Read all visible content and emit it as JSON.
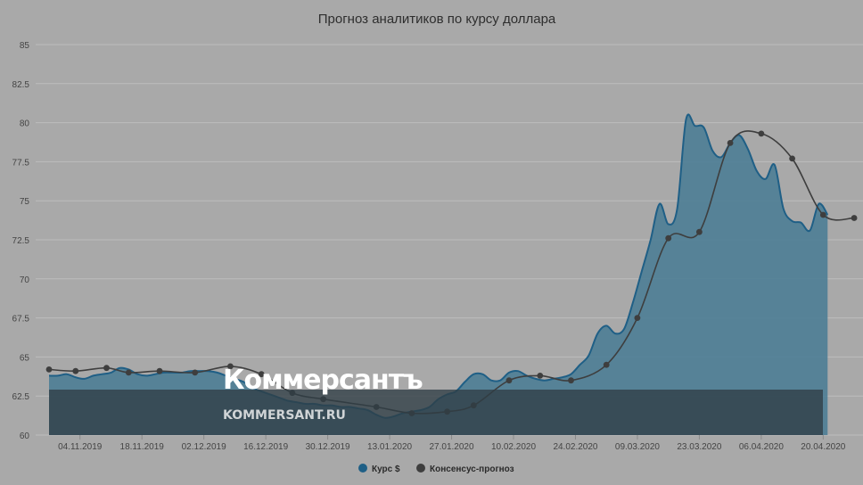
{
  "chart_data": {
    "type": "area",
    "title": "Прогноз аналитиков по курсу доллара",
    "ylim": [
      60,
      85
    ],
    "yticks": [
      "85",
      "82.5",
      "80",
      "77.5",
      "75",
      "72.5",
      "70",
      "67.5",
      "65",
      "62.5",
      "60"
    ],
    "xticks": [
      "04.11.2019",
      "18.11.2019",
      "02.12.2019",
      "16.12.2019",
      "30.12.2019",
      "13.01.2020",
      "27.01.2020",
      "10.02.2020",
      "24.02.2020",
      "09.03.2020",
      "23.03.2020",
      "06.04.2020",
      "20.04.2020"
    ],
    "grid": true,
    "legend_position": "bottom-center",
    "series": [
      {
        "name": "Курс $",
        "color": "#1f5f86",
        "fill": "#4f7f96",
        "points": [
          [
            "28.10.2019",
            63.8
          ],
          [
            "30.10.2019",
            63.8
          ],
          [
            "01.11.2019",
            63.9
          ],
          [
            "03.11.2019",
            63.7
          ],
          [
            "05.11.2019",
            63.6
          ],
          [
            "07.11.2019",
            63.8
          ],
          [
            "09.11.2019",
            63.9
          ],
          [
            "11.11.2019",
            64.0
          ],
          [
            "13.11.2019",
            64.3
          ],
          [
            "15.11.2019",
            64.2
          ],
          [
            "17.11.2019",
            63.9
          ],
          [
            "19.11.2019",
            63.8
          ],
          [
            "21.11.2019",
            63.9
          ],
          [
            "23.11.2019",
            64.0
          ],
          [
            "25.11.2019",
            64.0
          ],
          [
            "27.11.2019",
            64.0
          ],
          [
            "29.11.2019",
            64.1
          ],
          [
            "01.12.2019",
            64.1
          ],
          [
            "03.12.2019",
            64.1
          ],
          [
            "05.12.2019",
            64.0
          ],
          [
            "07.12.2019",
            63.8
          ],
          [
            "09.12.2019",
            63.6
          ],
          [
            "11.12.2019",
            63.4
          ],
          [
            "13.12.2019",
            63.0
          ],
          [
            "15.12.2019",
            62.8
          ],
          [
            "17.12.2019",
            62.6
          ],
          [
            "19.12.2019",
            62.4
          ],
          [
            "21.12.2019",
            62.2
          ],
          [
            "23.12.2019",
            62.1
          ],
          [
            "25.12.2019",
            62.0
          ],
          [
            "27.12.2019",
            62.0
          ],
          [
            "29.12.2019",
            61.9
          ],
          [
            "31.12.2019",
            61.9
          ],
          [
            "02.01.2020",
            61.8
          ],
          [
            "04.01.2020",
            61.8
          ],
          [
            "06.01.2020",
            61.7
          ],
          [
            "08.01.2020",
            61.6
          ],
          [
            "10.01.2020",
            61.3
          ],
          [
            "12.01.2020",
            61.1
          ],
          [
            "14.01.2020",
            61.2
          ],
          [
            "16.01.2020",
            61.4
          ],
          [
            "18.01.2020",
            61.5
          ],
          [
            "20.01.2020",
            61.6
          ],
          [
            "22.01.2020",
            61.8
          ],
          [
            "24.01.2020",
            62.3
          ],
          [
            "26.01.2020",
            62.6
          ],
          [
            "28.01.2020",
            62.8
          ],
          [
            "30.01.2020",
            63.4
          ],
          [
            "01.02.2020",
            63.9
          ],
          [
            "03.02.2020",
            63.9
          ],
          [
            "05.02.2020",
            63.5
          ],
          [
            "07.02.2020",
            63.5
          ],
          [
            "09.02.2020",
            64.0
          ],
          [
            "11.02.2020",
            64.1
          ],
          [
            "13.02.2020",
            63.8
          ],
          [
            "15.02.2020",
            63.6
          ],
          [
            "17.02.2020",
            63.5
          ],
          [
            "19.02.2020",
            63.6
          ],
          [
            "21.02.2020",
            63.7
          ],
          [
            "23.02.2020",
            63.9
          ],
          [
            "25.02.2020",
            64.5
          ],
          [
            "27.02.2020",
            65.1
          ],
          [
            "29.02.2020",
            66.5
          ],
          [
            "02.03.2020",
            67.0
          ],
          [
            "04.03.2020",
            66.5
          ],
          [
            "06.03.2020",
            66.8
          ],
          [
            "08.03.2020",
            68.5
          ],
          [
            "10.03.2020",
            70.5
          ],
          [
            "12.03.2020",
            72.5
          ],
          [
            "14.03.2020",
            74.8
          ],
          [
            "16.03.2020",
            73.5
          ],
          [
            "18.03.2020",
            74.5
          ],
          [
            "20.03.2020",
            80.2
          ],
          [
            "22.03.2020",
            79.8
          ],
          [
            "24.03.2020",
            79.7
          ],
          [
            "26.03.2020",
            78.2
          ],
          [
            "28.03.2020",
            77.8
          ],
          [
            "30.03.2020",
            78.7
          ],
          [
            "01.04.2020",
            79.2
          ],
          [
            "03.04.2020",
            78.3
          ],
          [
            "05.04.2020",
            76.9
          ],
          [
            "07.04.2020",
            76.4
          ],
          [
            "09.04.2020",
            77.3
          ],
          [
            "11.04.2020",
            74.5
          ],
          [
            "13.04.2020",
            73.7
          ],
          [
            "15.04.2020",
            73.6
          ],
          [
            "17.04.2020",
            73.1
          ],
          [
            "19.04.2020",
            74.8
          ],
          [
            "21.04.2020",
            74.1
          ]
        ]
      },
      {
        "name": "Консенсус-прогноз",
        "color": "#3e3e3e",
        "points": [
          [
            "28.10.2019",
            64.2
          ],
          [
            "03.11.2019",
            64.1
          ],
          [
            "10.11.2019",
            64.3
          ],
          [
            "15.11.2019",
            64.0
          ],
          [
            "22.11.2019",
            64.1
          ],
          [
            "30.11.2019",
            64.0
          ],
          [
            "08.12.2019",
            64.4
          ],
          [
            "15.12.2019",
            63.9
          ],
          [
            "22.12.2019",
            62.7
          ],
          [
            "29.12.2019",
            62.3
          ],
          [
            "10.01.2020",
            61.8
          ],
          [
            "18.01.2020",
            61.4
          ],
          [
            "26.01.2020",
            61.5
          ],
          [
            "01.02.2020",
            61.9
          ],
          [
            "09.02.2020",
            63.5
          ],
          [
            "16.02.2020",
            63.8
          ],
          [
            "23.02.2020",
            63.5
          ],
          [
            "02.03.2020",
            64.5
          ],
          [
            "09.03.2020",
            67.5
          ],
          [
            "16.03.2020",
            72.6
          ],
          [
            "23.03.2020",
            73.0
          ],
          [
            "30.03.2020",
            78.7
          ],
          [
            "06.04.2020",
            79.3
          ],
          [
            "13.04.2020",
            77.7
          ],
          [
            "20.04.2020",
            74.1
          ],
          [
            "27.04.2020",
            73.9
          ]
        ]
      }
    ]
  },
  "watermark": {
    "brand": "Коммерсантъ",
    "url": "KOMMERSANT.RU"
  }
}
